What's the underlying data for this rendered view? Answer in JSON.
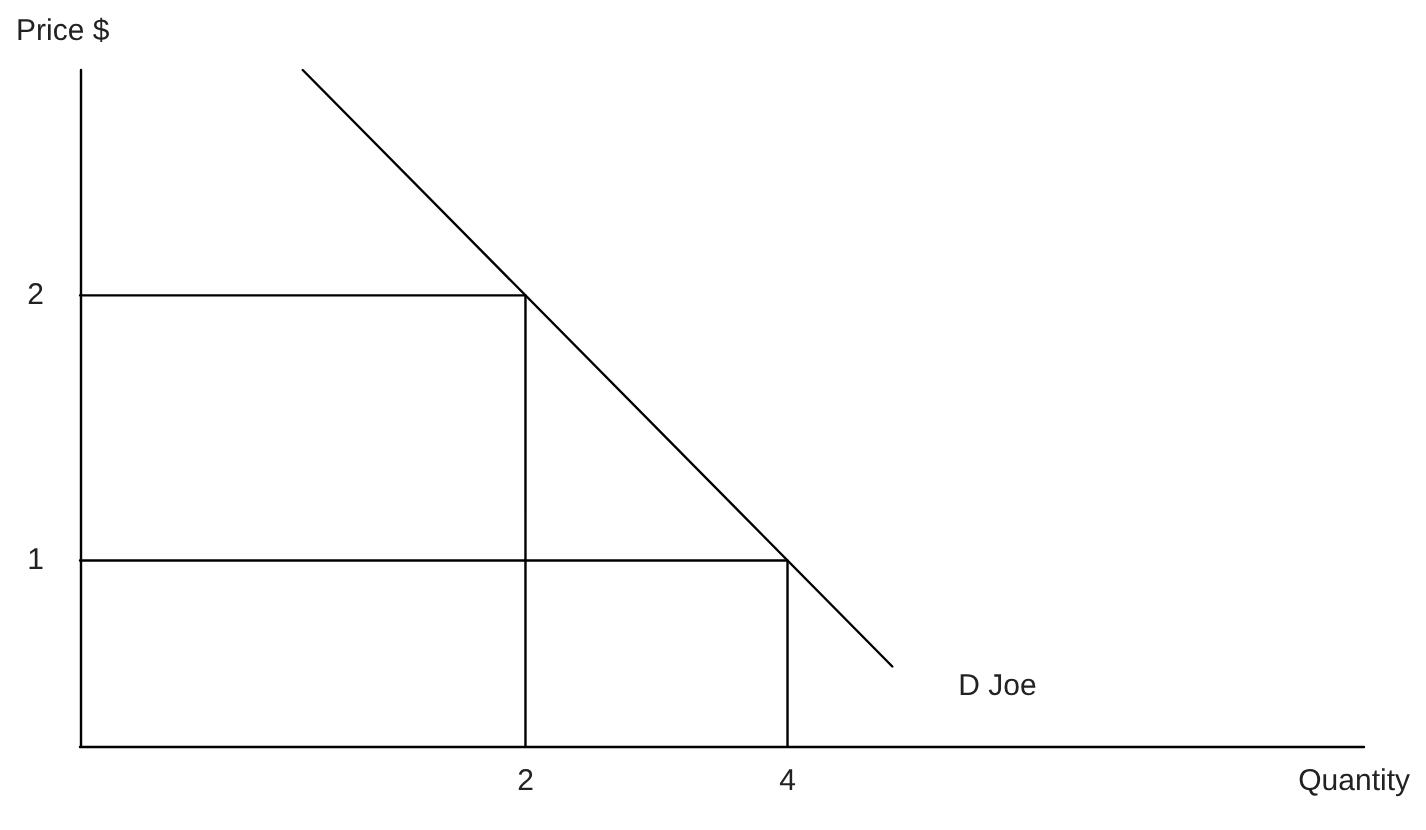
{
  "chart_data": {
    "type": "line",
    "xlabel": "Quantity",
    "ylabel": "Price $",
    "xlim": [
      -1.4,
      8.4
    ],
    "ylim": [
      0.3,
      2.85
    ],
    "xticks": [
      2,
      4
    ],
    "yticks": [
      1,
      2
    ],
    "grid": false,
    "legend": false,
    "marker": "none",
    "line_style": "solid",
    "series": [
      {
        "name": "D Joe",
        "color": "#000000",
        "x": [
          0.3,
          4.8
        ],
        "values": [
          2.85,
          0.6
        ]
      },
      {
        "color": "#000000",
        "x": [
          -1.4,
          2,
          2
        ],
        "values": [
          2,
          2,
          0.3
        ]
      },
      {
        "color": "#000000",
        "x": [
          -1.4,
          4,
          4
        ],
        "values": [
          1,
          1,
          0.3
        ]
      }
    ]
  }
}
